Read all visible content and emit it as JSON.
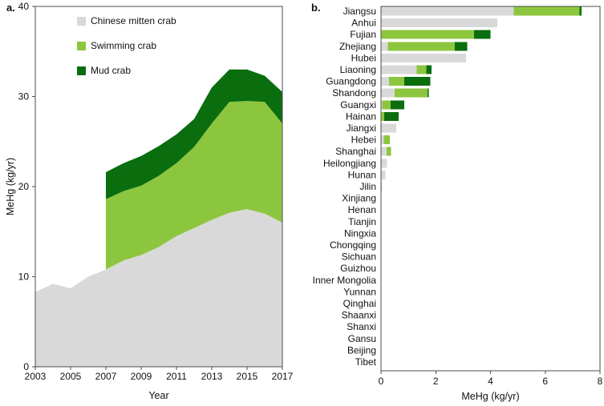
{
  "figure": {
    "panel_a": {
      "label": "a.",
      "x_axis_label": "Year",
      "y_axis_label": "MeHg (kg/yr)",
      "legend": [
        {
          "name": "Chinese mitten crab",
          "color": "#d9d9d9"
        },
        {
          "name": "Swimming crab",
          "color": "#8cc63e"
        },
        {
          "name": "Mud crab",
          "color": "#0a6e0f"
        }
      ]
    },
    "panel_b": {
      "label": "b.",
      "x_axis_label": "MeHg (kg/yr)"
    },
    "colors": {
      "chinese_mitten_crab": "#d9d9d9",
      "swimming_crab": "#8cc63e",
      "mud_crab": "#0a6e0f",
      "axis": "#4d4d4d",
      "text": "#111111"
    }
  },
  "chart_data": [
    {
      "type": "area",
      "stacked": true,
      "title": "",
      "xlabel": "Year",
      "ylabel": "MeHg (kg/yr)",
      "x": [
        2003,
        2004,
        2005,
        2006,
        2007,
        2008,
        2009,
        2010,
        2011,
        2012,
        2013,
        2014,
        2015,
        2016,
        2017
      ],
      "xlim": [
        2003,
        2017
      ],
      "ylim": [
        0,
        40
      ],
      "x_ticks": [
        2003,
        2005,
        2007,
        2009,
        2011,
        2013,
        2015,
        2017
      ],
      "y_ticks": [
        0,
        10,
        20,
        30,
        40
      ],
      "grid": false,
      "legend_position": "top-left",
      "series": [
        {
          "name": "Chinese mitten crab",
          "color": "#d9d9d9",
          "values": [
            8.3,
            9.2,
            8.7,
            10.0,
            10.8,
            11.8,
            12.4,
            13.3,
            14.5,
            15.4,
            16.3,
            17.1,
            17.5,
            17.0,
            16.0
          ]
        },
        {
          "name": "Swimming crab",
          "color": "#8cc63e",
          "values": [
            null,
            null,
            null,
            null,
            7.8,
            7.7,
            7.7,
            7.9,
            8.1,
            9.0,
            10.7,
            12.3,
            12.0,
            12.4,
            11.0
          ]
        },
        {
          "name": "Mud crab",
          "color": "#0a6e0f",
          "values": [
            null,
            null,
            null,
            null,
            3.0,
            3.1,
            3.3,
            3.3,
            3.2,
            3.1,
            4.0,
            3.6,
            3.5,
            2.9,
            3.5
          ]
        }
      ]
    },
    {
      "type": "bar",
      "orientation": "horizontal",
      "stacked": true,
      "title": "",
      "xlabel": "MeHg (kg/yr)",
      "xlim": [
        0,
        8
      ],
      "x_ticks": [
        0,
        2,
        4,
        6,
        8
      ],
      "grid": false,
      "categories": [
        "Jiangsu",
        "Anhui",
        "Fujian",
        "Zhejiang",
        "Hubei",
        "Liaoning",
        "Guangdong",
        "Shandong",
        "Guangxi",
        "Hainan",
        "Jiangxi",
        "Hebei",
        "Shanghai",
        "Heilongjiang",
        "Hunan",
        "Jilin",
        "Xinjiang",
        "Henan",
        "Tianjin",
        "Ningxia",
        "Chongqing",
        "Sichuan",
        "Guizhou",
        "Inner Mongolia",
        "Yunnan",
        "Qinghai",
        "Shaanxi",
        "Shanxi",
        "Gansu",
        "Beijing",
        "Tibet"
      ],
      "series": [
        {
          "name": "Chinese mitten crab",
          "color": "#d9d9d9",
          "values": [
            4.85,
            4.25,
            0,
            0.25,
            3.1,
            1.3,
            0.3,
            0.5,
            0.05,
            0,
            0.55,
            0.1,
            0.2,
            0.22,
            0.16,
            0.05,
            0.02,
            0.01,
            0.01,
            0,
            0,
            0,
            0,
            0,
            0,
            0,
            0,
            0,
            0,
            0,
            0
          ]
        },
        {
          "name": "Swimming crab",
          "color": "#8cc63e",
          "values": [
            2.4,
            0,
            3.4,
            2.45,
            0,
            0.35,
            0.55,
            1.2,
            0.3,
            0.12,
            0,
            0.22,
            0.16,
            0,
            0,
            0,
            0,
            0,
            0,
            0,
            0,
            0,
            0,
            0,
            0,
            0,
            0,
            0,
            0,
            0,
            0
          ]
        },
        {
          "name": "Mud crab",
          "color": "#0a6e0f",
          "values": [
            0.08,
            0,
            0.6,
            0.45,
            0,
            0.2,
            0.95,
            0.05,
            0.5,
            0.52,
            0,
            0,
            0,
            0,
            0,
            0,
            0,
            0,
            0,
            0,
            0,
            0,
            0,
            0,
            0,
            0,
            0,
            0,
            0,
            0,
            0
          ]
        }
      ]
    }
  ]
}
